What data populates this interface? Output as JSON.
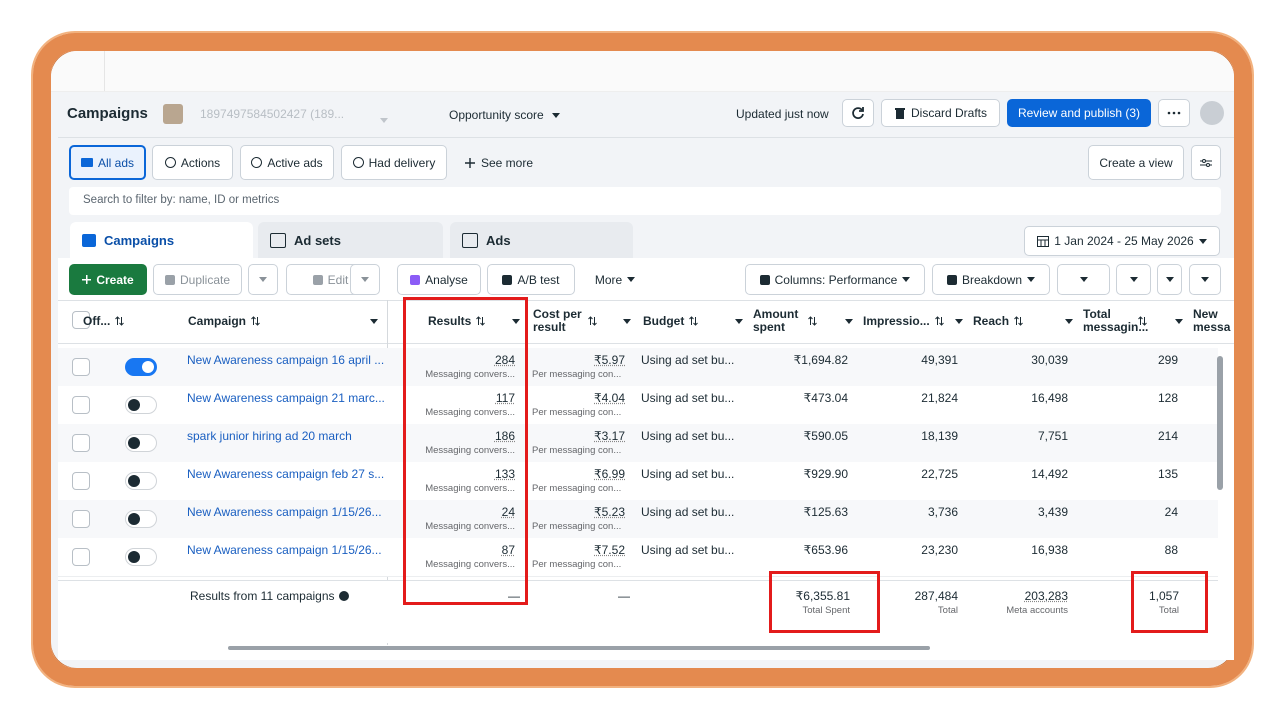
{
  "header": {
    "title": "Campaigns",
    "account": "1897497584502427 (189...",
    "opportunity": "Opportunity score",
    "updated": "Updated just now",
    "discard": "Discard Drafts",
    "review": "Review and publish (3)"
  },
  "filters": {
    "tabs": [
      "All ads",
      "Actions",
      "Active ads",
      "Had delivery"
    ],
    "see_more": "See more",
    "create_view": "Create a view"
  },
  "search": "Search to filter by: name, ID or metrics",
  "level_tabs": [
    "Campaigns",
    "Ad sets",
    "Ads"
  ],
  "date_range": "1 Jan 2024 - 25 May 2026",
  "toolbar": {
    "create": "Create",
    "duplicate": "Duplicate",
    "edit": "Edit",
    "analyse": "Analyse",
    "ab_test": "A/B test",
    "more": "More",
    "columns": "Columns: Performance",
    "breakdown": "Breakdown"
  },
  "table": {
    "columns": [
      "Off...",
      "Campaign",
      "Results",
      "Cost per result",
      "Budget",
      "Amount spent",
      "Impressio...",
      "Reach",
      "Total messagin...",
      "New messa"
    ],
    "rows": [
      {
        "on": true,
        "name": "New Awareness campaign 16 april ...",
        "results": "284",
        "results_sub": "Messaging convers...",
        "cost": "₹5.97",
        "cost_sub": "Per messaging con...",
        "budget": "Using ad set bu...",
        "spent": "₹1,694.82",
        "impressions": "49,391",
        "reach": "30,039",
        "messaging": "299"
      },
      {
        "on": false,
        "name": "New Awareness campaign 21 marc...",
        "results": "117",
        "results_sub": "Messaging convers...",
        "cost": "₹4.04",
        "cost_sub": "Per messaging con...",
        "budget": "Using ad set bu...",
        "spent": "₹473.04",
        "impressions": "21,824",
        "reach": "16,498",
        "messaging": "128"
      },
      {
        "on": false,
        "name": "spark junior hiring ad 20 march",
        "results": "186",
        "results_sub": "Messaging convers...",
        "cost": "₹3.17",
        "cost_sub": "Per messaging con...",
        "budget": "Using ad set bu...",
        "spent": "₹590.05",
        "impressions": "18,139",
        "reach": "7,751",
        "messaging": "214"
      },
      {
        "on": false,
        "name": "New Awareness campaign feb 27 s...",
        "results": "133",
        "results_sub": "Messaging convers...",
        "cost": "₹6.99",
        "cost_sub": "Per messaging con...",
        "budget": "Using ad set bu...",
        "spent": "₹929.90",
        "impressions": "22,725",
        "reach": "14,492",
        "messaging": "135"
      },
      {
        "on": false,
        "name": "New Awareness campaign 1/15/26...",
        "results": "24",
        "results_sub": "Messaging convers...",
        "cost": "₹5.23",
        "cost_sub": "Per messaging con...",
        "budget": "Using ad set bu...",
        "spent": "₹125.63",
        "impressions": "3,736",
        "reach": "3,439",
        "messaging": "24"
      },
      {
        "on": false,
        "name": "New Awareness campaign 1/15/26...",
        "results": "87",
        "results_sub": "Messaging convers...",
        "cost": "₹7.52",
        "cost_sub": "Per messaging con...",
        "budget": "Using ad set bu...",
        "spent": "₹653.96",
        "impressions": "23,230",
        "reach": "16,938",
        "messaging": "88"
      }
    ],
    "summary": {
      "label": "Results from 11 campaigns",
      "results": "—",
      "cost": "—",
      "spent": "₹6,355.81",
      "spent_sub": "Total Spent",
      "impressions": "287,484",
      "impressions_sub": "Total",
      "reach": "203,283",
      "reach_sub": "Meta accounts",
      "messaging": "1,057",
      "messaging_sub": "Total"
    }
  }
}
